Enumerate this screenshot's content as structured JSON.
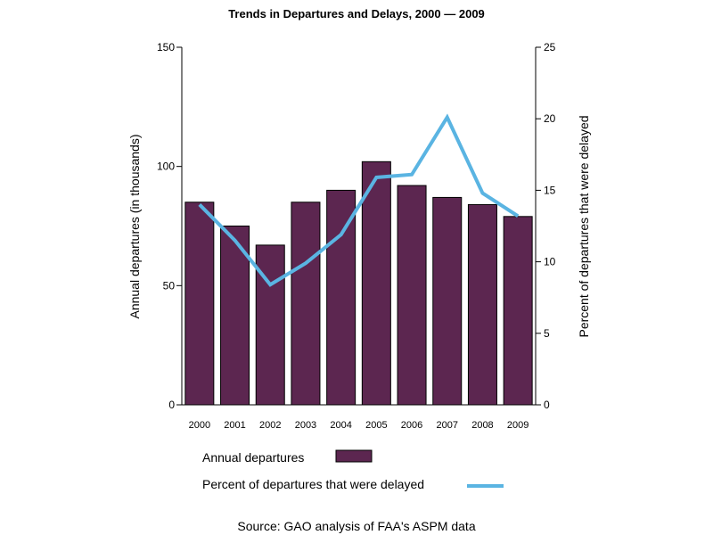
{
  "chart_data": {
    "type": "bar",
    "title": "Trends in Departures and Delays, 2000 — 2009",
    "categories": [
      "2000",
      "2001",
      "2002",
      "2003",
      "2004",
      "2005",
      "2006",
      "2007",
      "2008",
      "2009"
    ],
    "series": [
      {
        "name": "Annual departures",
        "type": "bar",
        "axis": "left",
        "color": "#5c2650",
        "values": [
          85,
          75,
          67,
          85,
          90,
          102,
          92,
          87,
          84,
          79
        ]
      },
      {
        "name": "Percent of departures that were delayed",
        "type": "line",
        "axis": "right",
        "color": "#5ab4e2",
        "values": [
          14.0,
          11.5,
          8.4,
          9.9,
          11.9,
          15.9,
          16.1,
          20.1,
          14.8,
          13.2
        ]
      }
    ],
    "ylabel": "Annual departures (in thousands)",
    "ylim": [
      0,
      150
    ],
    "yticks": [
      "0",
      "50",
      "100",
      "150"
    ],
    "y2label": "Percent of departures that were delayed",
    "y2lim": [
      0,
      25
    ],
    "y2ticks": [
      "0",
      "5",
      "10",
      "15",
      "20",
      "25"
    ],
    "grid": false,
    "legend_position": "bottom",
    "source": "Source: GAO analysis of FAA's ASPM data"
  }
}
